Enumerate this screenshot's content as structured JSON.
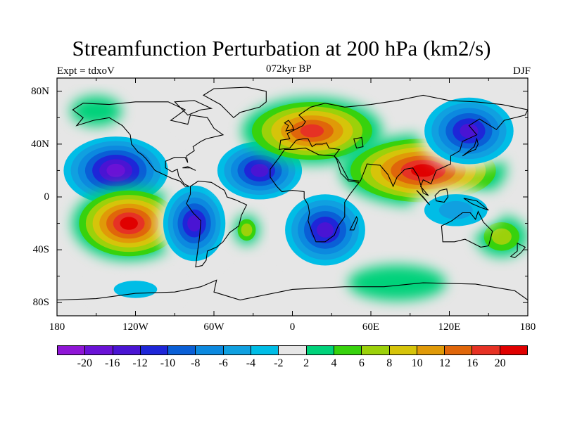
{
  "title": "Streamfunction Perturbation at 200 hPa (km2/s)",
  "left_label": "Expt = tdxoV",
  "center_label": "072kyr BP",
  "right_label": "DJF",
  "map": {
    "projection": "cylindrical equidistant",
    "background_color": "#e6e6e6",
    "coastline_color": "#000000",
    "lat_ticks": [
      "80N",
      "40N",
      "0",
      "40S",
      "80S"
    ],
    "lon_ticks": [
      "180",
      "120W",
      "60W",
      "0",
      "60E",
      "120E",
      "180"
    ]
  },
  "colorbar": {
    "levels": [
      "-20",
      "-16",
      "-12",
      "-10",
      "-8",
      "-6",
      "-4",
      "-2",
      "2",
      "4",
      "6",
      "8",
      "10",
      "12",
      "16",
      "20"
    ],
    "colors": [
      "#8f16d6",
      "#6a12d6",
      "#4a14d3",
      "#1e26d8",
      "#0a5fd6",
      "#0c89df",
      "#10a0e0",
      "#00bde6",
      "#e6e6e6",
      "#00d27a",
      "#37d20d",
      "#9cd10a",
      "#d6c40a",
      "#e09a08",
      "#e0660a",
      "#e63224",
      "#e00000"
    ]
  },
  "features": [
    {
      "label": "negative anomaly",
      "lon": -135,
      "lat": 20,
      "level": "-20"
    },
    {
      "label": "positive anomaly",
      "lon": -125,
      "lat": -20,
      "level": "20"
    },
    {
      "label": "negative anomaly",
      "lon": -75,
      "lat": -20,
      "level": "-16"
    },
    {
      "label": "negative anomaly",
      "lon": -25,
      "lat": 20,
      "level": "-16"
    },
    {
      "label": "negative anomaly",
      "lon": 25,
      "lat": -25,
      "level": "-16"
    },
    {
      "label": "positive anomaly",
      "lon": 15,
      "lat": 50,
      "level": "16"
    },
    {
      "label": "positive anomaly",
      "lon": 100,
      "lat": 20,
      "level": "20"
    },
    {
      "label": "negative anomaly",
      "lon": 135,
      "lat": 50,
      "level": "-16"
    }
  ]
}
